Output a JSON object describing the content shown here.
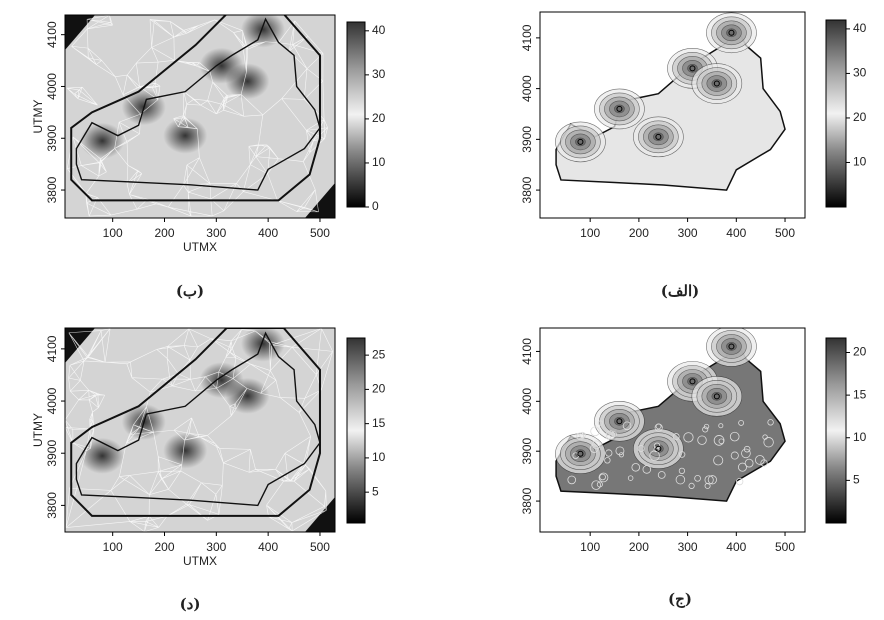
{
  "panels": [
    {
      "caption": "(ب)",
      "xlabel": "UTMX",
      "ylabel": "UTMY",
      "xlim": [
        8,
        529
      ],
      "xticks": [
        100,
        200,
        300,
        400,
        500
      ],
      "ylim": [
        3746,
        4138
      ],
      "yticks": [
        3800,
        3900,
        4000,
        4100
      ],
      "colorbar_lim": [
        0,
        42
      ],
      "colorbar_ticks": [
        0,
        10,
        20,
        30,
        40
      ]
    },
    {
      "caption": "(الف)",
      "xlim": [
        -3,
        541
      ],
      "xticks": [
        100,
        200,
        300,
        400,
        500
      ],
      "ylim": [
        3745,
        4151
      ],
      "yticks": [
        3800,
        3900,
        4000,
        4100
      ],
      "colorbar_lim": [
        0,
        42
      ],
      "colorbar_ticks": [
        10,
        20,
        30,
        40
      ]
    },
    {
      "caption": "(د)",
      "xlabel": "UTMX",
      "ylabel": "UTMY",
      "xlim": [
        8,
        529
      ],
      "xticks": [
        100,
        200,
        300,
        400,
        500
      ],
      "ylim": [
        3749,
        4140
      ],
      "yticks": [
        3800,
        3900,
        4000,
        4100
      ],
      "colorbar_lim": [
        0.5,
        27.5
      ],
      "colorbar_ticks": [
        5,
        10,
        15,
        20,
        25
      ]
    },
    {
      "caption": "(ج)",
      "xlim": [
        -3,
        541
      ],
      "xticks": [
        100,
        200,
        300,
        400,
        500
      ],
      "ylim": [
        3738,
        4147
      ],
      "yticks": [
        3800,
        3900,
        4000,
        4100
      ],
      "colorbar_lim": [
        0,
        21.7
      ],
      "colorbar_ticks": [
        5,
        10,
        15,
        20
      ]
    }
  ]
}
